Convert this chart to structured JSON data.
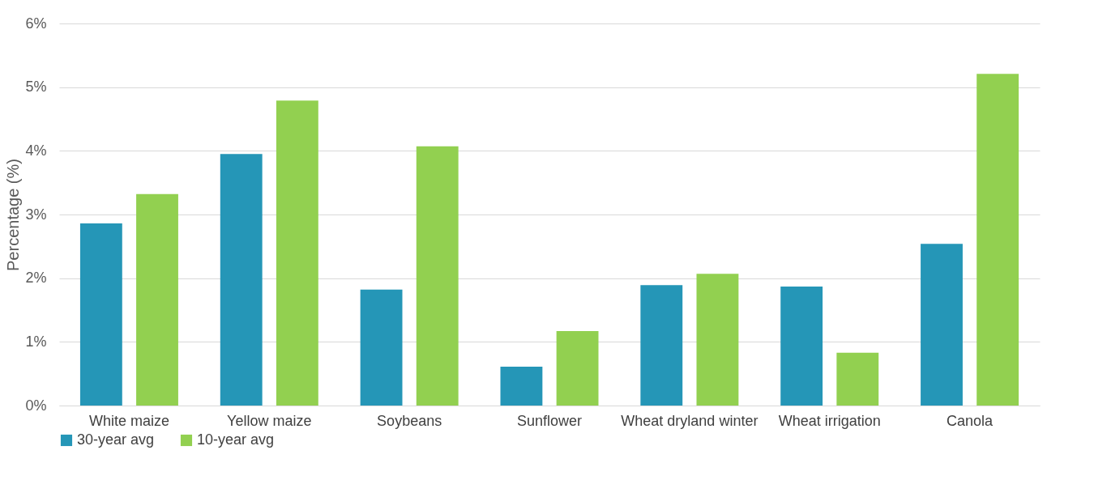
{
  "chart_data": {
    "type": "bar",
    "ylabel": "Percentage (%)",
    "categories": [
      "White maize",
      "Yellow maize",
      "Soybeans",
      "Sunflower",
      "Wheat dryland winter",
      "Wheat irrigation",
      "Canola"
    ],
    "series": [
      {
        "name": "30-year avg",
        "color": "#2596b7",
        "values": [
          2.86,
          3.95,
          1.82,
          0.61,
          1.89,
          1.87,
          2.54
        ]
      },
      {
        "name": "10-year avg",
        "color": "#92d050",
        "values": [
          3.32,
          4.79,
          4.07,
          1.17,
          2.07,
          0.83,
          5.21
        ]
      }
    ],
    "ylim": [
      0,
      6
    ],
    "yticks": [
      {
        "value": 0,
        "label": "0%"
      },
      {
        "value": 1,
        "label": "1%"
      },
      {
        "value": 2,
        "label": "2%"
      },
      {
        "value": 3,
        "label": "3%"
      },
      {
        "value": 4,
        "label": "4%"
      },
      {
        "value": 5,
        "label": "5%"
      },
      {
        "value": 6,
        "label": "6%"
      }
    ],
    "grid": "y",
    "legend": "bottom"
  }
}
